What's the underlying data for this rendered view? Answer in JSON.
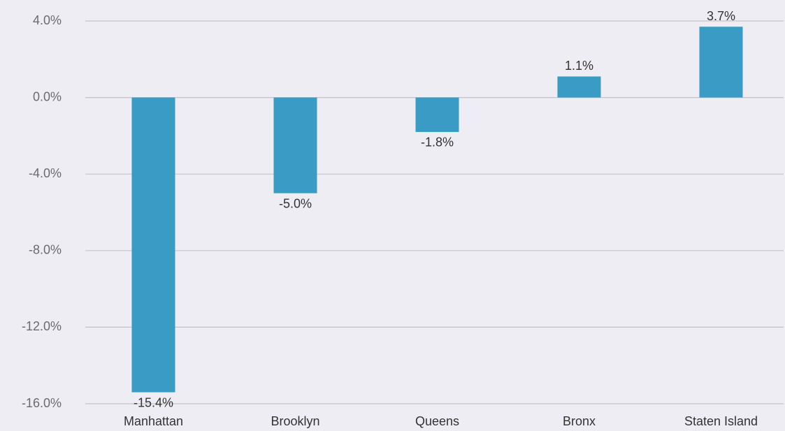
{
  "chart_data": {
    "type": "bar",
    "categories": [
      "Manhattan",
      "Brooklyn",
      "Queens",
      "Bronx",
      "Staten Island"
    ],
    "values": [
      -15.4,
      -5.0,
      -1.8,
      1.1,
      3.7
    ],
    "value_labels": [
      "-15.4%",
      "-5.0%",
      "-1.8%",
      "1.1%",
      "3.7%"
    ],
    "color": "#3a9cc4",
    "ylim": [
      -16,
      4
    ],
    "yticks": [
      {
        "value": 4,
        "label": "4.0%"
      },
      {
        "value": 0,
        "label": "0.0%"
      },
      {
        "value": -4,
        "label": "-4.0%"
      },
      {
        "value": -8,
        "label": "-8.0%"
      },
      {
        "value": -12,
        "label": "-12.0%"
      },
      {
        "value": -16,
        "label": "-16.0%"
      }
    ],
    "grid": true
  }
}
